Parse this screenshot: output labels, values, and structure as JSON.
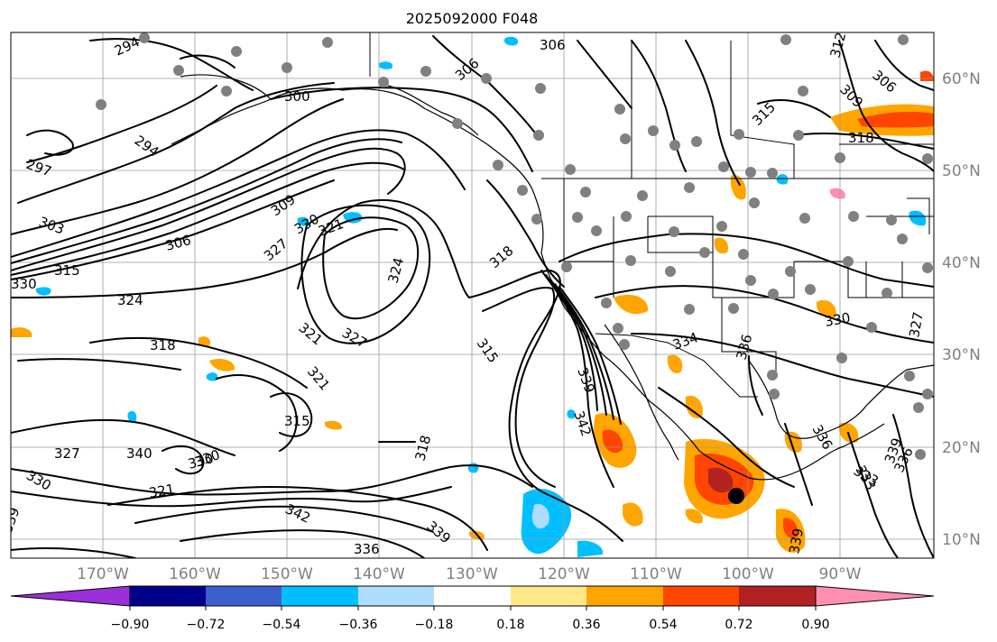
{
  "figure": {
    "title": "2025092000 F048"
  },
  "map": {
    "lat_labels": [
      "60°N",
      "50°N",
      "40°N",
      "30°N",
      "20°N",
      "10°N"
    ],
    "lon_labels": [
      "170°W",
      "160°W",
      "150°W",
      "140°W",
      "130°W",
      "120°W",
      "110°W",
      "100°W",
      "90°W"
    ],
    "contour_labels": [
      "294",
      "306",
      "306",
      "300",
      "294",
      "297",
      "303",
      "306",
      "309",
      "315",
      "330",
      "330",
      "321",
      "327",
      "324",
      "324",
      "318",
      "327",
      "321",
      "315",
      "318",
      "315",
      "321",
      "336",
      "330",
      "330",
      "321",
      "327",
      "340",
      "342",
      "336",
      "339",
      "318",
      "339",
      "342",
      "334",
      "339",
      "336",
      "330",
      "333",
      "339",
      "315",
      "318",
      "309",
      "306",
      "312",
      "327",
      "336",
      "339",
      "333",
      "330"
    ],
    "station_marker": "gray-dot",
    "grid": true
  },
  "colorbar": {
    "tick_labels": [
      "−0.90",
      "−0.72",
      "−0.54",
      "−0.36",
      "−0.18",
      "0.18",
      "0.36",
      "0.54",
      "0.72",
      "0.90"
    ],
    "colors": [
      "#9b30d9",
      "#00008b",
      "#3a5fcd",
      "#00bfff",
      "#aeddff",
      "#ffffff",
      "#ffe88a",
      "#ffa500",
      "#ff4500",
      "#b22222",
      "#ff8fb0"
    ],
    "extend": "both"
  }
}
